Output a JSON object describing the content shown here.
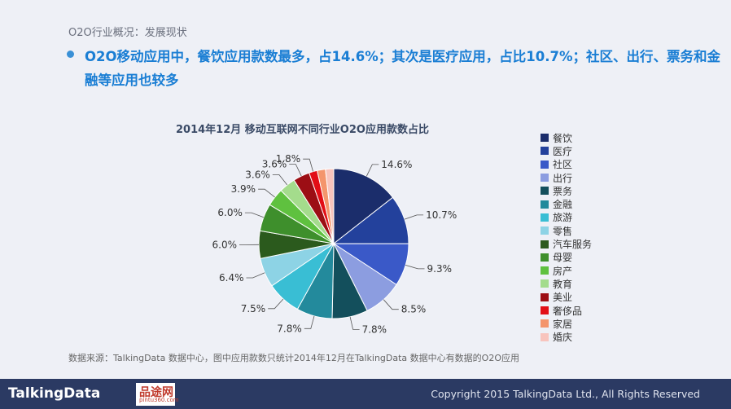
{
  "breadcrumb": "O2O行业概况：发展现状",
  "headline": "O2O移动应用中，餐饮应用款数最多，占14.6%；其次是医疗应用，占比10.7%；社区、出行、票务和金融等应用也较多",
  "source": "数据来源：TalkingData 数据中心，图中应用款数只统计2014年12月在TalkingData 数据中心有数据的O2O应用",
  "footer": {
    "logo": "TalkingData",
    "copyright": "Copyright 2015 TalkingData Ltd., All Rights Reserved",
    "watermark_logo": "品途网",
    "watermark_url": "pintu360.com"
  },
  "chart_data": {
    "type": "pie",
    "title": "2014年12月 移动互联网不同行业O2O应用款数占比",
    "legend_position": "right",
    "unit": "%",
    "categories": [
      "餐饮",
      "医疗",
      "社区",
      "出行",
      "票务",
      "金融",
      "旅游",
      "零售",
      "汽车服务",
      "母婴",
      "房产",
      "教育",
      "美业",
      "奢侈品",
      "家居",
      "婚庆"
    ],
    "values": [
      14.6,
      10.7,
      9.3,
      8.5,
      7.8,
      7.8,
      7.5,
      6.4,
      6.0,
      6.0,
      3.9,
      3.6,
      3.6,
      1.8,
      1.8,
      1.8
    ],
    "data_labels": [
      "14.6%",
      "10.7%",
      "9.3%",
      "8.5%",
      "7.8%",
      "7.8%",
      "7.5%",
      "6.4%",
      "6.0%",
      "6.0%",
      "3.9%",
      "3.6%",
      "3.6%",
      "1.8%",
      "",
      ""
    ],
    "colors": [
      "#1b2d6b",
      "#23419c",
      "#3a59c8",
      "#8c9de0",
      "#134f5c",
      "#238a9c",
      "#39bed4",
      "#8dd3e5",
      "#2b5a1d",
      "#3e8f2c",
      "#5fc13f",
      "#a4dc8c",
      "#9c0e14",
      "#e20e16",
      "#f4956c",
      "#f8c4bd"
    ]
  }
}
